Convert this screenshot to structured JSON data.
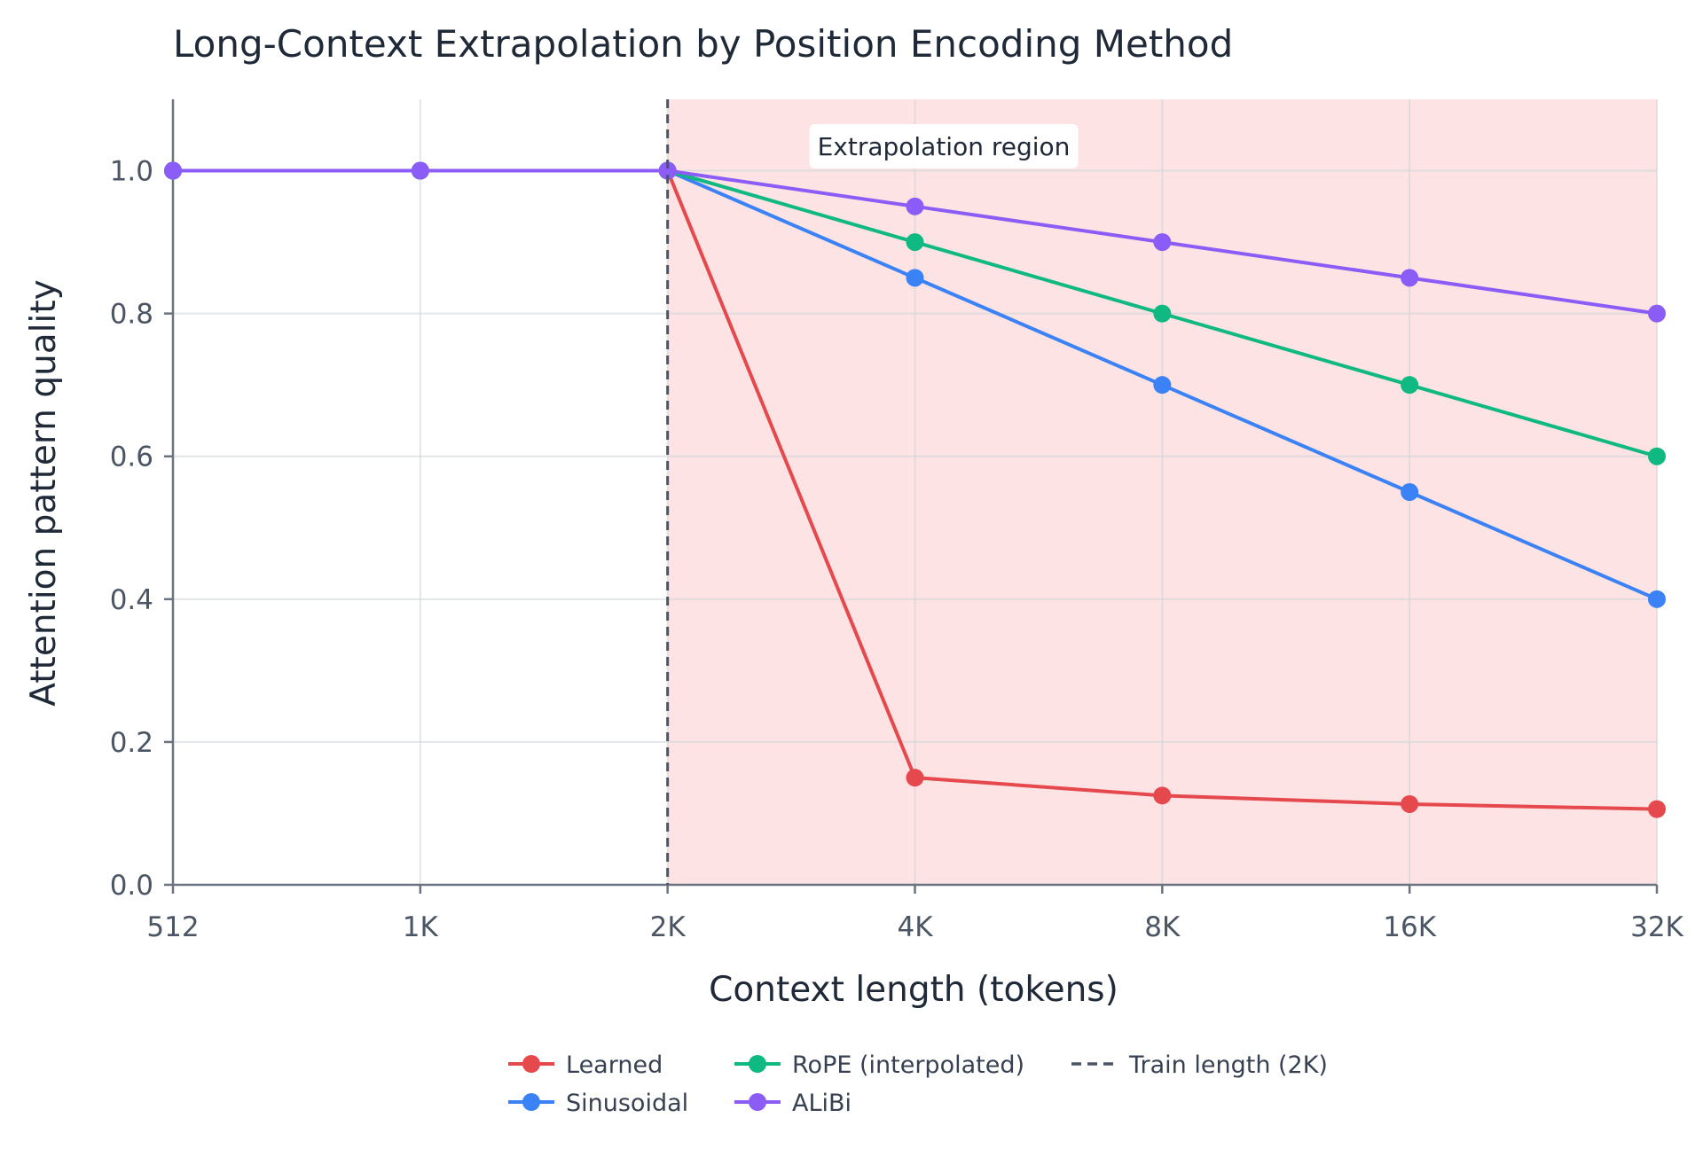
{
  "chart_data": {
    "type": "line",
    "title": "Long-Context Extrapolation by Position Encoding Method",
    "xlabel": "Context length (tokens)",
    "ylabel": "Attention pattern quality",
    "categories": [
      "512",
      "1K",
      "2K",
      "4K",
      "8K",
      "16K",
      "32K"
    ],
    "ylim": [
      0,
      1.1
    ],
    "yticks": [
      "0.0",
      "0.2",
      "0.4",
      "0.6",
      "0.8",
      "1.0"
    ],
    "grid": true,
    "legend_position": "bottom",
    "series": [
      {
        "name": "Learned",
        "color": "#e5484d",
        "values": [
          1.0,
          1.0,
          1.0,
          0.15,
          0.125,
          0.113,
          0.106
        ]
      },
      {
        "name": "Sinusoidal",
        "color": "#3b82f6",
        "values": [
          1.0,
          1.0,
          1.0,
          0.85,
          0.7,
          0.55,
          0.4
        ]
      },
      {
        "name": "RoPE (interpolated)",
        "color": "#10b981",
        "values": [
          1.0,
          1.0,
          1.0,
          0.9,
          0.8,
          0.7,
          0.6
        ]
      },
      {
        "name": "ALiBi",
        "color": "#8b5cf6",
        "values": [
          1.0,
          1.0,
          1.0,
          0.95,
          0.9,
          0.85,
          0.8
        ]
      }
    ],
    "reference_line": {
      "name": "Train length (2K)",
      "at_category": "2K",
      "color": "#4b5563",
      "style": "dashed"
    },
    "shaded_region": {
      "label": "Extrapolation region",
      "from_category": "2K",
      "to_category": "32K",
      "color": "#fde3e3"
    }
  }
}
